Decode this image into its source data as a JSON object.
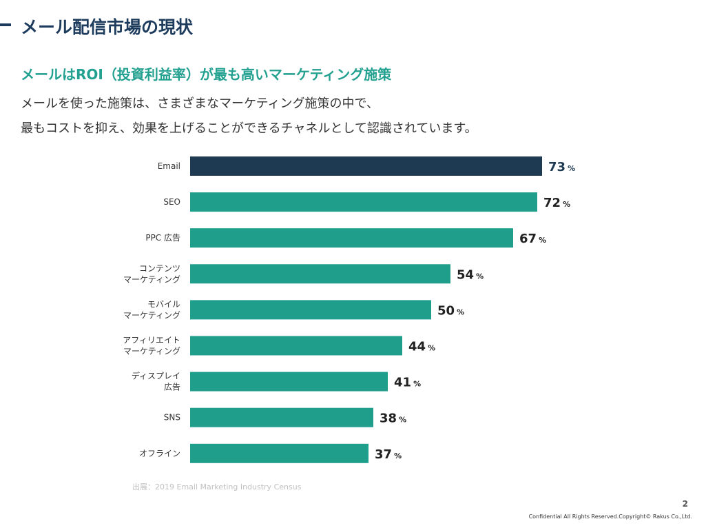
{
  "page": {
    "title": "メール配信市場の現状",
    "subtitle": "メールはROI（投資利益率）が最も高いマーケティング施策",
    "body_lines": [
      "メールを使った施策は、さまざまなマーケティング施策の中で、",
      "最もコストを抑え、効果を上げることができるチャネルとして認識されています。"
    ],
    "source": "出展：2019 Email Marketing Industry Census",
    "page_number": "2",
    "copyright": "Confidential All Rights Reserved.Copyright© Rakus Co.,Ltd."
  },
  "colors": {
    "title": "#1d3b5c",
    "subtitle": "#22a090",
    "highlight_bar": "#1d3a52",
    "bar": "#1f9e8c",
    "highlight_value": "#1d3a52",
    "value": "#222222"
  },
  "chart_data": {
    "type": "bar",
    "orientation": "horizontal",
    "categories": [
      [
        "Email"
      ],
      [
        "SEO"
      ],
      [
        "PPC 広告"
      ],
      [
        "コンテンツ",
        "マーケティング"
      ],
      [
        "モバイル",
        "マーケティング"
      ],
      [
        "アフィリエイト",
        "マーケティング"
      ],
      [
        "ディスプレイ",
        "広告"
      ],
      [
        "SNS"
      ],
      [
        "オフライン"
      ]
    ],
    "values": [
      73,
      72,
      67,
      54,
      50,
      44,
      41,
      38,
      37
    ],
    "value_suffix": "%",
    "highlight_index": 0,
    "grid": false,
    "legend": "none"
  }
}
